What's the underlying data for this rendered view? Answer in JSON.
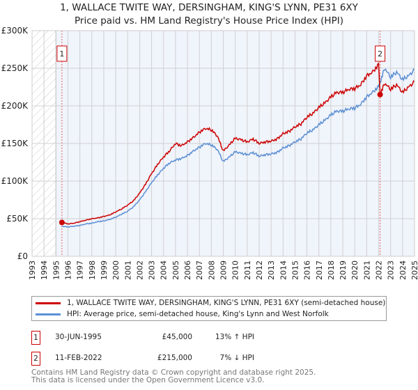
{
  "title": "1, WALLACE TWITE WAY, DERSINGHAM, KING'S LYNN, PE31 6XY",
  "subtitle": "Price paid vs. HM Land Registry's House Price Index (HPI)",
  "chart_data": {
    "type": "line",
    "xlim": [
      1993,
      2025
    ],
    "ylim": [
      0,
      300000
    ],
    "yticks": [
      {
        "v": 0,
        "label": "£0"
      },
      {
        "v": 50000,
        "label": "£50K"
      },
      {
        "v": 100000,
        "label": "£100K"
      },
      {
        "v": 150000,
        "label": "£150K"
      },
      {
        "v": 200000,
        "label": "£200K"
      },
      {
        "v": 250000,
        "label": "£250K"
      },
      {
        "v": 300000,
        "label": "£300K"
      }
    ],
    "xticks": [
      "1993",
      "1994",
      "1995",
      "1996",
      "1997",
      "1998",
      "1999",
      "2000",
      "2001",
      "2002",
      "2003",
      "2004",
      "2005",
      "2006",
      "2007",
      "2008",
      "2009",
      "2010",
      "2011",
      "2012",
      "2013",
      "2014",
      "2015",
      "2016",
      "2017",
      "2018",
      "2019",
      "2020",
      "2021",
      "2022",
      "2023",
      "2024",
      "2025"
    ],
    "no_data_before": 1995,
    "series": [
      {
        "name": "1, WALLACE TWITE WAY, DERSINGHAM, KING'S LYNN, PE31 6XY (semi-detached house)",
        "color": "#cc0000",
        "x": [
          1995.5,
          1996,
          1996.5,
          1997,
          1997.5,
          1998,
          1998.5,
          1999,
          1999.5,
          2000,
          2000.5,
          2001,
          2001.5,
          2002,
          2002.5,
          2003,
          2003.5,
          2004,
          2004.5,
          2005,
          2005.5,
          2006,
          2006.5,
          2007,
          2007.5,
          2008,
          2008.5,
          2009,
          2009.5,
          2010,
          2010.5,
          2011,
          2011.5,
          2012,
          2012.5,
          2013,
          2013.5,
          2014,
          2014.5,
          2015,
          2015.5,
          2016,
          2016.5,
          2017,
          2017.5,
          2018,
          2018.5,
          2019,
          2019.5,
          2020,
          2020.5,
          2021,
          2021.5,
          2022,
          2022.12,
          2022.5,
          2023,
          2023.5,
          2024,
          2024.5,
          2025
        ],
        "y": [
          45000,
          43000,
          44000,
          46000,
          48000,
          50000,
          51000,
          53000,
          55000,
          59000,
          63000,
          68000,
          74000,
          84000,
          96000,
          110000,
          122000,
          132000,
          140000,
          150000,
          147000,
          152000,
          158000,
          165000,
          170000,
          168000,
          160000,
          140000,
          148000,
          157000,
          155000,
          152000,
          156000,
          150000,
          152000,
          153000,
          156000,
          163000,
          166000,
          172000,
          176000,
          185000,
          190000,
          198000,
          204000,
          212000,
          218000,
          218000,
          222000,
          223000,
          228000,
          240000,
          245000,
          255000,
          215000,
          230000,
          222000,
          228000,
          218000,
          225000,
          232000
        ]
      },
      {
        "name": "HPI: Average price, semi-detached house, King's Lynn and West Norfolk",
        "color": "#5b8fd4",
        "x": [
          1995.5,
          1996,
          1996.5,
          1997,
          1997.5,
          1998,
          1998.5,
          1999,
          1999.5,
          2000,
          2000.5,
          2001,
          2001.5,
          2002,
          2002.5,
          2003,
          2003.5,
          2004,
          2004.5,
          2005,
          2005.5,
          2006,
          2006.5,
          2007,
          2007.5,
          2008,
          2008.5,
          2009,
          2009.5,
          2010,
          2010.5,
          2011,
          2011.5,
          2012,
          2012.5,
          2013,
          2013.5,
          2014,
          2014.5,
          2015,
          2015.5,
          2016,
          2016.5,
          2017,
          2017.5,
          2018,
          2018.5,
          2019,
          2019.5,
          2020,
          2020.5,
          2021,
          2021.5,
          2022,
          2022.12,
          2022.5,
          2023,
          2023.5,
          2024,
          2024.5,
          2025
        ],
        "y": [
          40000,
          39000,
          40000,
          41000,
          43000,
          44000,
          46000,
          47000,
          49000,
          52000,
          56000,
          60000,
          66000,
          75000,
          86000,
          98000,
          108000,
          117000,
          124000,
          128000,
          130000,
          134000,
          140000,
          145000,
          150000,
          148000,
          142000,
          126000,
          132000,
          139000,
          137000,
          135000,
          138000,
          133000,
          135000,
          136000,
          138000,
          144000,
          147000,
          152000,
          156000,
          164000,
          168000,
          175000,
          181000,
          188000,
          193000,
          193000,
          196000,
          197000,
          202000,
          212000,
          218000,
          226000,
          231000,
          250000,
          238000,
          245000,
          235000,
          240000,
          248000
        ]
      }
    ],
    "sales": [
      {
        "label": "1",
        "x": 1995.5,
        "y": 45000,
        "date": "30-JUN-1995",
        "price": "£45,000",
        "hpi": "13% ↑ HPI"
      },
      {
        "label": "2",
        "x": 2022.12,
        "y": 215000,
        "date": "11-FEB-2022",
        "price": "£215,000",
        "hpi": "7% ↓ HPI"
      }
    ]
  },
  "footer1": "Contains HM Land Registry data © Crown copyright and database right 2025.",
  "footer2": "This data is licensed under the Open Government Licence v3.0."
}
